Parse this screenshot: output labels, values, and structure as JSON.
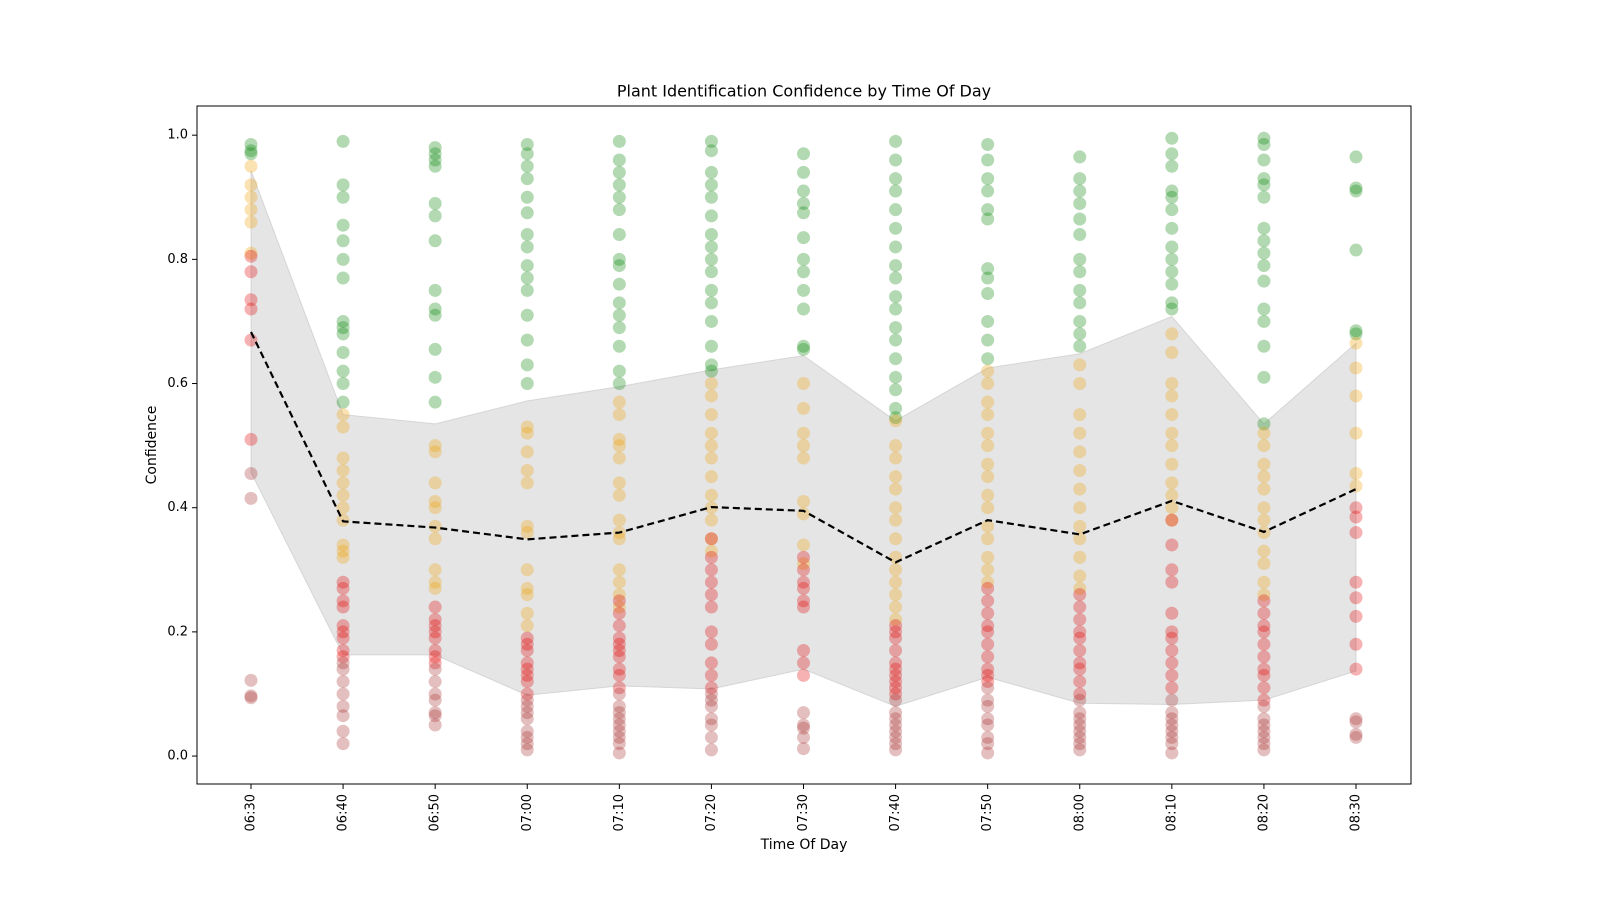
{
  "chart_data": {
    "type": "scatter",
    "title": "Plant Identification Confidence by Time Of Day",
    "x_label": "Time Of Day",
    "y_label": "Confidence",
    "categories": [
      "06:30",
      "06:40",
      "06:50",
      "07:00",
      "07:10",
      "07:20",
      "07:30",
      "07:40",
      "07:50",
      "08:00",
      "08:10",
      "08:20",
      "08:30"
    ],
    "ylim": [
      -0.045,
      1.047
    ],
    "yticks": [
      {
        "value": 0,
        "label": "0.0"
      },
      0.2,
      0.4,
      0.6,
      0.8,
      {
        "value": 1,
        "label": "1.0"
      }
    ],
    "band": {
      "color": "#bbbbbb",
      "upper": [
        0.943,
        0.55,
        0.535,
        0.572,
        0.595,
        0.622,
        0.645,
        0.54,
        0.625,
        0.648,
        0.708,
        0.535,
        0.665
      ],
      "lower": [
        0.457,
        0.163,
        0.163,
        0.098,
        0.113,
        0.108,
        0.14,
        0.08,
        0.127,
        0.085,
        0.083,
        0.09,
        0.137
      ]
    },
    "mean_line": {
      "color": "#000000",
      "values": [
        0.683,
        0.378,
        0.368,
        0.349,
        0.36,
        0.401,
        0.395,
        0.312,
        0.38,
        0.357,
        0.411,
        0.361,
        0.43
      ]
    },
    "series": [
      {
        "color": "#008000",
        "values": [
          [
            0.985,
            0.975,
            0.97
          ],
          [
            0.99,
            0.92,
            0.9,
            0.855,
            0.83,
            0.8,
            0.77,
            0.7,
            0.69,
            0.68,
            0.65,
            0.62,
            0.6,
            0.57
          ],
          [
            0.98,
            0.97,
            0.96,
            0.95,
            0.89,
            0.87,
            0.83,
            0.75,
            0.72,
            0.71,
            0.655,
            0.61,
            0.57
          ],
          [
            0.985,
            0.97,
            0.95,
            0.93,
            0.9,
            0.875,
            0.84,
            0.82,
            0.79,
            0.77,
            0.75,
            0.71,
            0.67,
            0.63,
            0.6
          ],
          [
            0.99,
            0.96,
            0.94,
            0.92,
            0.9,
            0.88,
            0.84,
            0.8,
            0.79,
            0.76,
            0.73,
            0.71,
            0.69,
            0.66,
            0.62,
            0.6
          ],
          [
            0.99,
            0.975,
            0.94,
            0.92,
            0.9,
            0.87,
            0.84,
            0.82,
            0.8,
            0.78,
            0.75,
            0.73,
            0.7,
            0.66,
            0.63,
            0.62
          ],
          [
            0.97,
            0.94,
            0.91,
            0.89,
            0.875,
            0.835,
            0.8,
            0.78,
            0.75,
            0.72,
            0.66,
            0.655
          ],
          [
            0.99,
            0.96,
            0.93,
            0.91,
            0.88,
            0.85,
            0.82,
            0.79,
            0.77,
            0.74,
            0.72,
            0.69,
            0.67,
            0.64,
            0.61,
            0.59,
            0.56,
            0.545
          ],
          [
            0.985,
            0.96,
            0.93,
            0.91,
            0.88,
            0.865,
            0.785,
            0.77,
            0.745,
            0.7,
            0.67,
            0.64
          ],
          [
            0.965,
            0.93,
            0.91,
            0.89,
            0.865,
            0.84,
            0.8,
            0.78,
            0.75,
            0.73,
            0.7,
            0.68,
            0.66
          ],
          [
            0.995,
            0.97,
            0.95,
            0.91,
            0.9,
            0.88,
            0.85,
            0.82,
            0.8,
            0.78,
            0.76,
            0.73,
            0.72
          ],
          [
            0.995,
            0.985,
            0.96,
            0.93,
            0.92,
            0.9,
            0.85,
            0.83,
            0.81,
            0.79,
            0.765,
            0.72,
            0.7,
            0.66,
            0.61,
            0.535
          ],
          [
            0.965,
            0.915,
            0.91,
            0.815,
            0.685,
            0.68
          ]
        ]
      },
      {
        "color": "#f0a000",
        "values": [
          [
            0.95,
            0.92,
            0.9,
            0.88,
            0.86,
            0.81
          ],
          [
            0.55,
            0.53,
            0.48,
            0.46,
            0.44,
            0.42,
            0.4,
            0.38,
            0.34,
            0.33,
            0.32
          ],
          [
            0.5,
            0.49,
            0.44,
            0.41,
            0.4,
            0.37,
            0.35,
            0.3,
            0.28,
            0.27
          ],
          [
            0.53,
            0.52,
            0.49,
            0.46,
            0.44,
            0.37,
            0.36,
            0.3,
            0.27,
            0.26,
            0.23,
            0.21
          ],
          [
            0.57,
            0.55,
            0.51,
            0.5,
            0.48,
            0.44,
            0.42,
            0.38,
            0.36,
            0.35,
            0.3,
            0.28,
            0.26,
            0.24
          ],
          [
            0.6,
            0.58,
            0.55,
            0.52,
            0.5,
            0.48,
            0.45,
            0.42,
            0.4,
            0.38,
            0.35,
            0.33
          ],
          [
            0.6,
            0.56,
            0.52,
            0.5,
            0.48,
            0.41,
            0.39,
            0.34,
            0.31
          ],
          [
            0.54,
            0.5,
            0.48,
            0.45,
            0.43,
            0.4,
            0.38,
            0.35,
            0.32,
            0.3,
            0.28,
            0.26,
            0.24,
            0.22
          ],
          [
            0.62,
            0.6,
            0.57,
            0.55,
            0.52,
            0.5,
            0.47,
            0.45,
            0.42,
            0.4,
            0.37,
            0.35,
            0.32,
            0.3,
            0.28
          ],
          [
            0.63,
            0.6,
            0.55,
            0.52,
            0.49,
            0.46,
            0.43,
            0.4,
            0.37,
            0.35,
            0.32,
            0.29,
            0.27
          ],
          [
            0.68,
            0.65,
            0.6,
            0.58,
            0.55,
            0.52,
            0.5,
            0.47,
            0.44,
            0.42,
            0.4,
            0.38
          ],
          [
            0.52,
            0.5,
            0.47,
            0.45,
            0.43,
            0.4,
            0.38,
            0.36,
            0.33,
            0.31,
            0.28,
            0.26
          ],
          [
            0.665,
            0.625,
            0.58,
            0.52,
            0.455,
            0.435
          ]
        ]
      },
      {
        "color": "#e00000",
        "values": [
          [
            0.805,
            0.78,
            0.735,
            0.72,
            0.67,
            0.51
          ],
          [
            0.28,
            0.27,
            0.25,
            0.24,
            0.21,
            0.2,
            0.19,
            0.17,
            0.16
          ],
          [
            0.24,
            0.22,
            0.21,
            0.2,
            0.19,
            0.17,
            0.16,
            0.15
          ],
          [
            0.19,
            0.18,
            0.17,
            0.15,
            0.14,
            0.13,
            0.12,
            0.1
          ],
          [
            0.25,
            0.23,
            0.21,
            0.19,
            0.18,
            0.17,
            0.16,
            0.14,
            0.13,
            0.11
          ],
          [
            0.35,
            0.32,
            0.3,
            0.28,
            0.26,
            0.24,
            0.2,
            0.18,
            0.15,
            0.13,
            0.11
          ],
          [
            0.32,
            0.3,
            0.28,
            0.27,
            0.25,
            0.24,
            0.17,
            0.15,
            0.13
          ],
          [
            0.21,
            0.2,
            0.19,
            0.17,
            0.15,
            0.14,
            0.13,
            0.12,
            0.11,
            0.1
          ],
          [
            0.27,
            0.25,
            0.23,
            0.21,
            0.2,
            0.18,
            0.16,
            0.14,
            0.13,
            0.12
          ],
          [
            0.26,
            0.24,
            0.22,
            0.2,
            0.19,
            0.17,
            0.15,
            0.14,
            0.12,
            0.1
          ],
          [
            0.38,
            0.34,
            0.3,
            0.28,
            0.23,
            0.2,
            0.19,
            0.17,
            0.15,
            0.13,
            0.11
          ],
          [
            0.25,
            0.23,
            0.21,
            0.2,
            0.18,
            0.16,
            0.14,
            0.13,
            0.11,
            0.09
          ],
          [
            0.4,
            0.385,
            0.36,
            0.28,
            0.255,
            0.225,
            0.18,
            0.14
          ]
        ]
      },
      {
        "color": "#a52a2a",
        "values": [
          [
            0.455,
            0.415,
            0.122,
            0.097,
            0.094
          ],
          [
            0.15,
            0.14,
            0.12,
            0.1,
            0.08,
            0.065,
            0.04,
            0.02
          ],
          [
            0.14,
            0.12,
            0.1,
            0.09,
            0.07,
            0.065,
            0.05
          ],
          [
            0.09,
            0.08,
            0.07,
            0.06,
            0.04,
            0.03,
            0.02,
            0.01
          ],
          [
            0.1,
            0.08,
            0.07,
            0.06,
            0.05,
            0.04,
            0.03,
            0.02,
            0.005
          ],
          [
            0.1,
            0.09,
            0.08,
            0.06,
            0.05,
            0.03,
            0.01
          ],
          [
            0.07,
            0.05,
            0.045,
            0.03,
            0.012
          ],
          [
            0.09,
            0.07,
            0.06,
            0.05,
            0.04,
            0.03,
            0.02,
            0.01
          ],
          [
            0.11,
            0.09,
            0.08,
            0.06,
            0.05,
            0.03,
            0.02,
            0.005
          ],
          [
            0.09,
            0.07,
            0.06,
            0.05,
            0.04,
            0.03,
            0.02,
            0.01
          ],
          [
            0.09,
            0.07,
            0.06,
            0.05,
            0.04,
            0.03,
            0.02,
            0.005
          ],
          [
            0.08,
            0.06,
            0.05,
            0.04,
            0.03,
            0.02,
            0.01
          ],
          [
            0.06,
            0.055,
            0.035,
            0.03
          ]
        ]
      }
    ]
  }
}
